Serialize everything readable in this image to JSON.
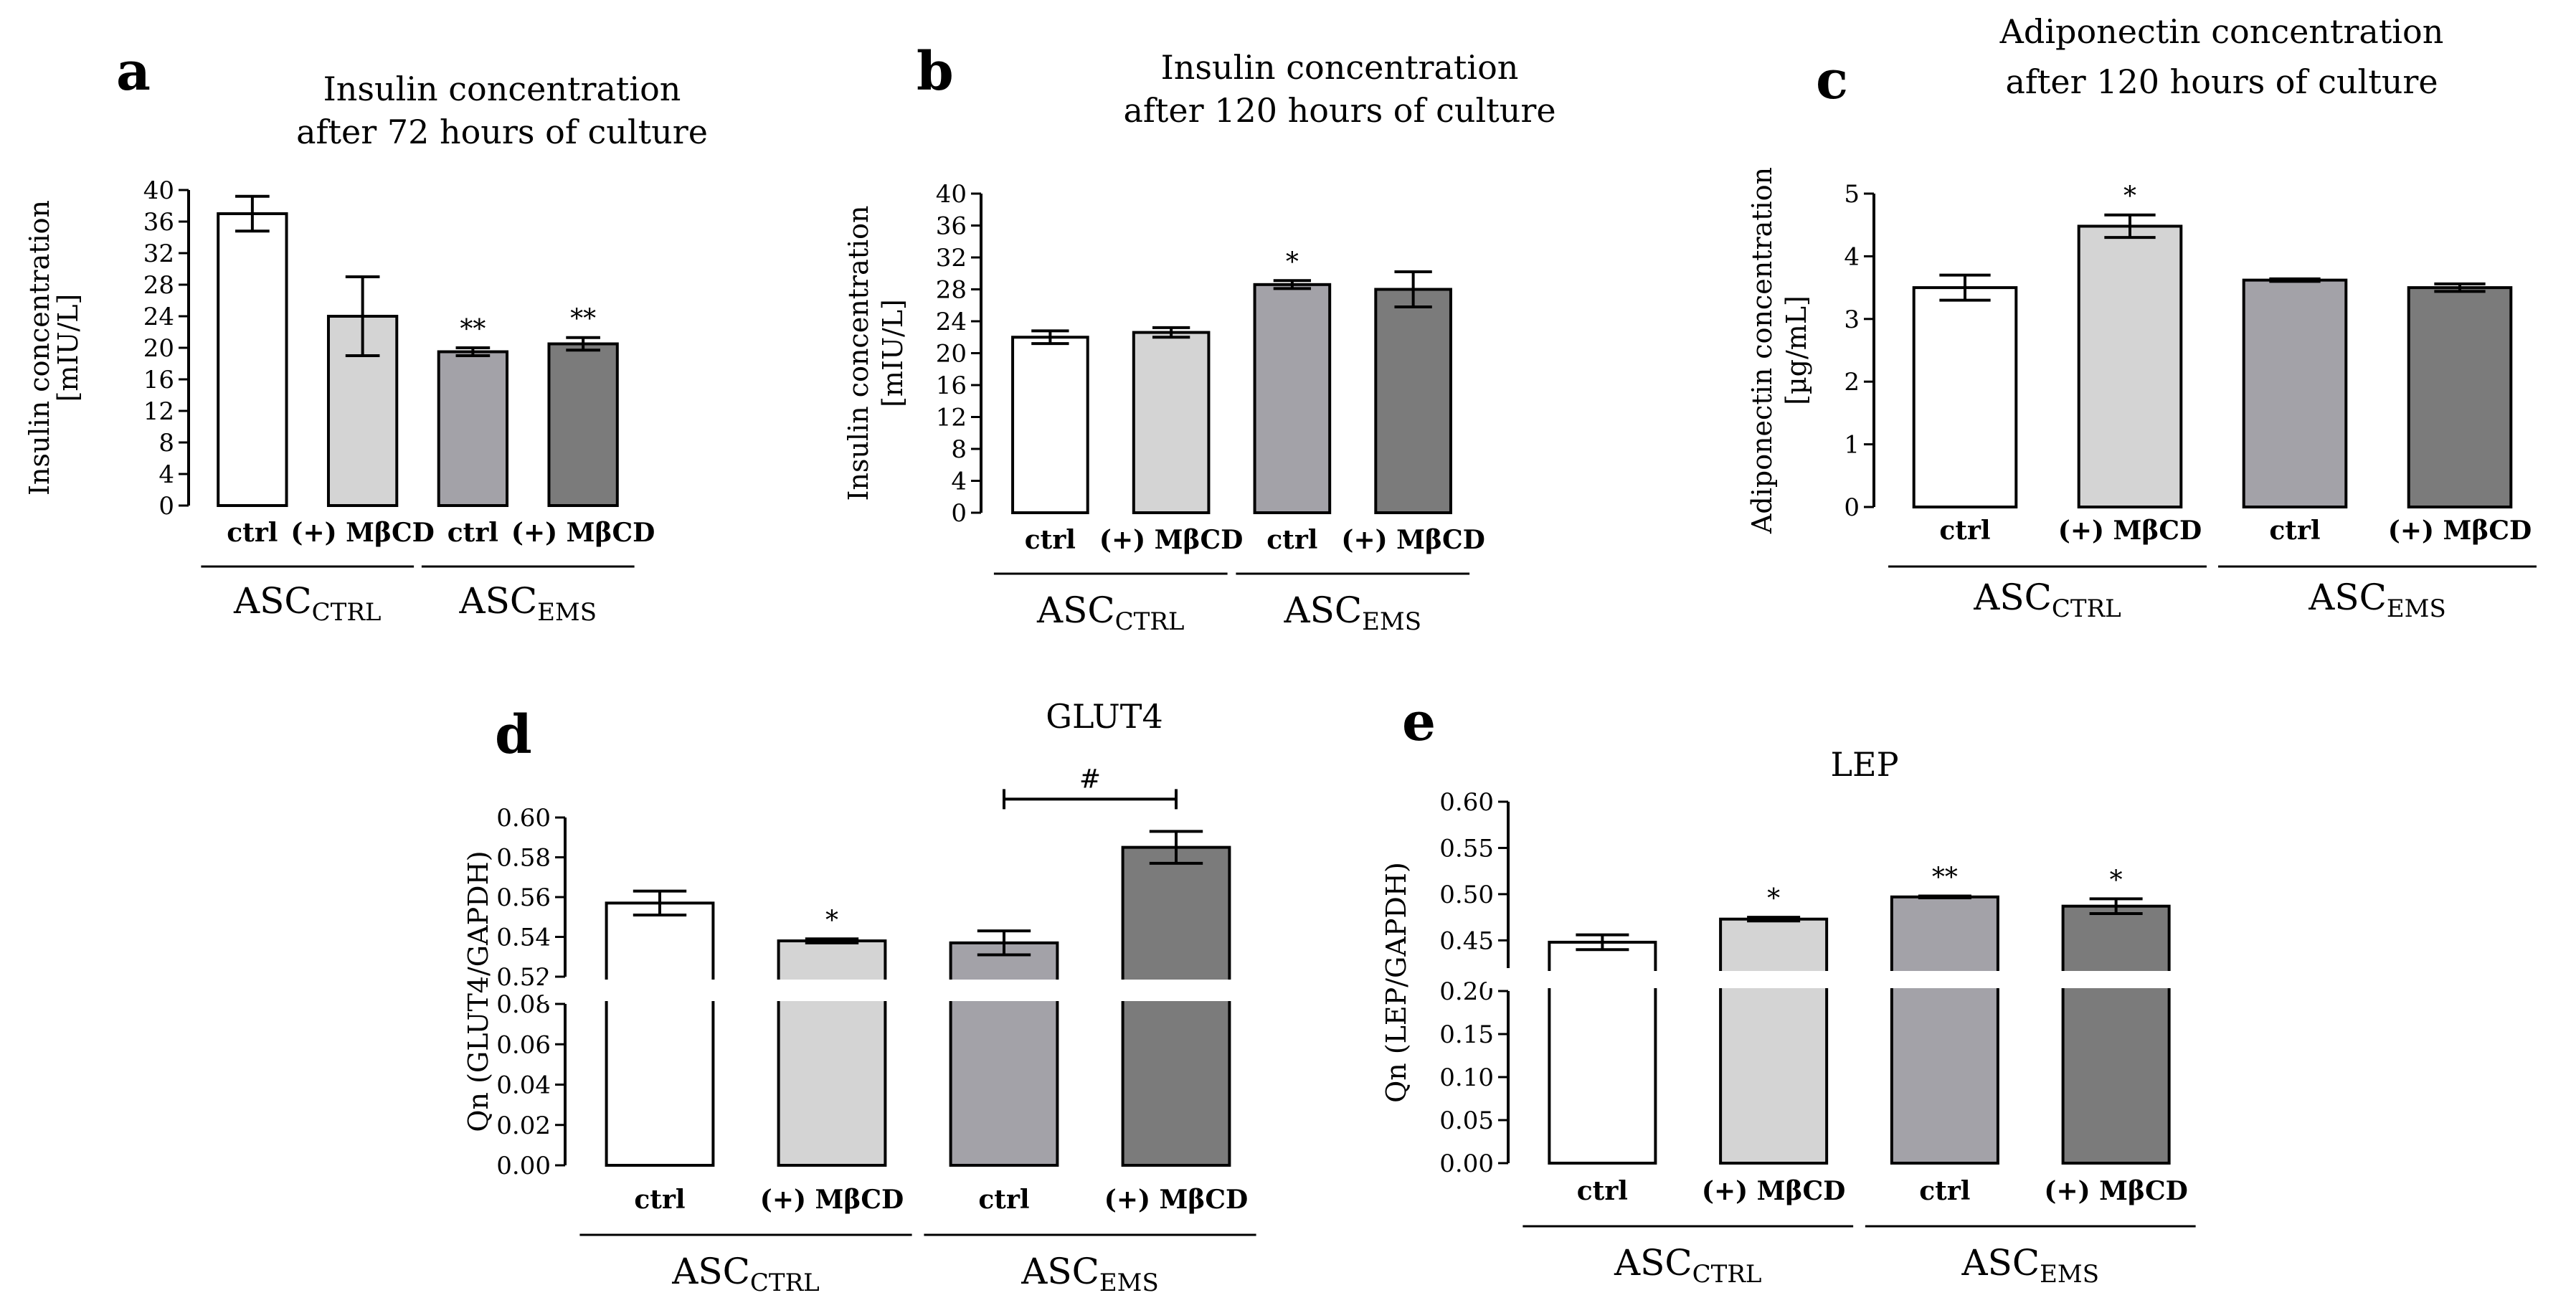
{
  "chart_data": [
    {
      "type": "bar",
      "panel": "a",
      "title": [
        "Insulin concentration",
        "after 72 hours of culture"
      ],
      "ylabel": [
        "Insulin concentration",
        "[mIU/L]"
      ],
      "ylim": [
        0,
        40
      ],
      "yticks": [
        "0",
        "4",
        "8",
        "12",
        "16",
        "20",
        "24",
        "28",
        "32",
        "36",
        "40"
      ],
      "categories": [
        "ctrl",
        "(+) MβCD",
        "ctrl",
        "(+) MβCD"
      ],
      "values": [
        37,
        24,
        19.5,
        20.5
      ],
      "errors": [
        2.2,
        5,
        0.5,
        0.8
      ],
      "significance": [
        "",
        "",
        "**",
        "**"
      ],
      "groups": [
        {
          "base": "ASC",
          "sub": "CTRL"
        },
        {
          "base": "ASC",
          "sub": "EMS"
        }
      ],
      "colors": [
        "#ffffff",
        "#d4d4d4",
        "#a3a2a8",
        "#7b7b7b"
      ]
    },
    {
      "type": "bar",
      "panel": "b",
      "title": [
        "Insulin concentration",
        "after 120 hours of culture"
      ],
      "ylabel": [
        "Insulin concentration",
        "[mIU/L]"
      ],
      "ylim": [
        0,
        40
      ],
      "yticks": [
        "0",
        "4",
        "8",
        "12",
        "16",
        "20",
        "24",
        "28",
        "32",
        "36",
        "40"
      ],
      "categories": [
        "ctrl",
        "(+) MβCD",
        "ctrl",
        "(+) MβCD"
      ],
      "values": [
        22,
        22.6,
        28.6,
        28
      ],
      "errors": [
        0.8,
        0.6,
        0.5,
        2.2
      ],
      "significance": [
        "",
        "",
        "*",
        ""
      ],
      "groups": [
        {
          "base": "ASC",
          "sub": "CTRL"
        },
        {
          "base": "ASC",
          "sub": "EMS"
        }
      ],
      "colors": [
        "#ffffff",
        "#d4d4d4",
        "#a3a2a8",
        "#7b7b7b"
      ]
    },
    {
      "type": "bar",
      "panel": "c",
      "title": [
        "Adiponectin concentration",
        "after 120 hours of culture"
      ],
      "ylabel": [
        "Adiponectin concentration",
        "[µg/mL]"
      ],
      "ylim": [
        0,
        5
      ],
      "yticks": [
        "0",
        "1",
        "2",
        "3",
        "4",
        "5"
      ],
      "categories": [
        "ctrl",
        "(+) MβCD",
        "ctrl",
        "(+) MβCD"
      ],
      "values": [
        3.5,
        4.48,
        3.62,
        3.5
      ],
      "errors": [
        0.2,
        0.18,
        0.02,
        0.06
      ],
      "significance": [
        "",
        "*",
        "",
        ""
      ],
      "groups": [
        {
          "base": "ASC",
          "sub": "CTRL"
        },
        {
          "base": "ASC",
          "sub": "EMS"
        }
      ],
      "colors": [
        "#ffffff",
        "#d4d4d4",
        "#a3a2a8",
        "#7b7b7b"
      ]
    },
    {
      "type": "bar",
      "panel": "d",
      "title": [
        "GLUT4"
      ],
      "ylabel": [
        "Qn (GLUT4/GAPDH)"
      ],
      "axis_break": {
        "lower": [
          0,
          0.08
        ],
        "upper": [
          0.52,
          0.6
        ]
      },
      "yticks_lower": [
        "0.00",
        "0.02",
        "0.04",
        "0.06",
        "0.08"
      ],
      "yticks_upper": [
        "0.52",
        "0.54",
        "0.56",
        "0.58",
        "0.60"
      ],
      "categories": [
        "ctrl",
        "(+) MβCD",
        "ctrl",
        "(+) MβCD"
      ],
      "values": [
        0.557,
        0.538,
        0.537,
        0.585
      ],
      "errors": [
        0.006,
        0.001,
        0.006,
        0.008
      ],
      "significance": [
        "",
        "*",
        "",
        ""
      ],
      "bracket": {
        "from": 2,
        "to": 3,
        "label": "#"
      },
      "groups": [
        {
          "base": "ASC",
          "sub": "CTRL"
        },
        {
          "base": "ASC",
          "sub": "EMS"
        }
      ],
      "colors": [
        "#ffffff",
        "#d4d4d4",
        "#a3a2a8",
        "#7b7b7b"
      ]
    },
    {
      "type": "bar",
      "panel": "e",
      "title": [
        "LEP"
      ],
      "ylabel": [
        "Qn (LEP/GAPDH)"
      ],
      "axis_break": {
        "lower": [
          0,
          0.2
        ],
        "upper": [
          0.42,
          0.6
        ]
      },
      "yticks_lower": [
        "0.00",
        "0.05",
        "0.10",
        "0.15",
        "0.20"
      ],
      "yticks_upper": [
        "0.45",
        "0.50",
        "0.55",
        "0.60"
      ],
      "categories": [
        "ctrl",
        "(+) MβCD",
        "ctrl",
        "(+) MβCD"
      ],
      "values": [
        0.448,
        0.473,
        0.497,
        0.487
      ],
      "errors": [
        0.008,
        0.002,
        0.001,
        0.008
      ],
      "significance": [
        "",
        "*",
        "**",
        "*"
      ],
      "groups": [
        {
          "base": "ASC",
          "sub": "CTRL"
        },
        {
          "base": "ASC",
          "sub": "EMS"
        }
      ],
      "colors": [
        "#ffffff",
        "#d4d4d4",
        "#a3a2a8",
        "#7b7b7b"
      ]
    }
  ]
}
